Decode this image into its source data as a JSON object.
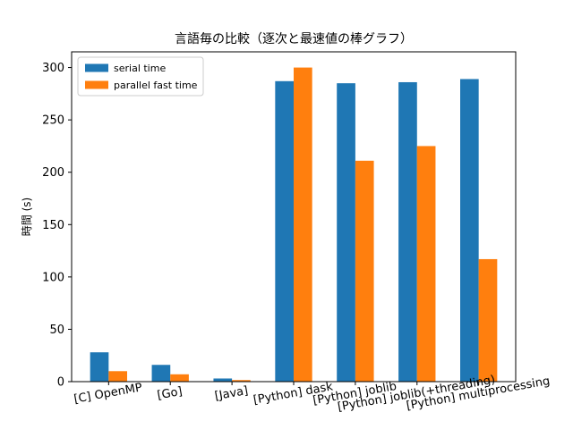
{
  "chart_data": {
    "type": "bar",
    "title": "言語毎の比較（逐次と最速値の棒グラフ）",
    "xlabel": "",
    "ylabel": "時間 (s)",
    "ylim": [
      0,
      315
    ],
    "yticks": [
      0,
      50,
      100,
      150,
      200,
      250,
      300
    ],
    "grid": false,
    "legend_position": "top-left",
    "categories": [
      "[C] OpenMP",
      "[Go]",
      "[Java]",
      "[Python] dask",
      "[Python] joblib",
      "[Python] joblib(+threading)",
      "[Python] multiprocessing"
    ],
    "series": [
      {
        "name": "serial time",
        "color": "#1f77b4",
        "values": [
          28,
          16,
          3,
          287,
          285,
          286,
          289
        ]
      },
      {
        "name": "parallel fast time",
        "color": "#ff7f0e",
        "values": [
          10,
          7,
          1.5,
          300,
          211,
          225,
          117
        ]
      }
    ]
  }
}
